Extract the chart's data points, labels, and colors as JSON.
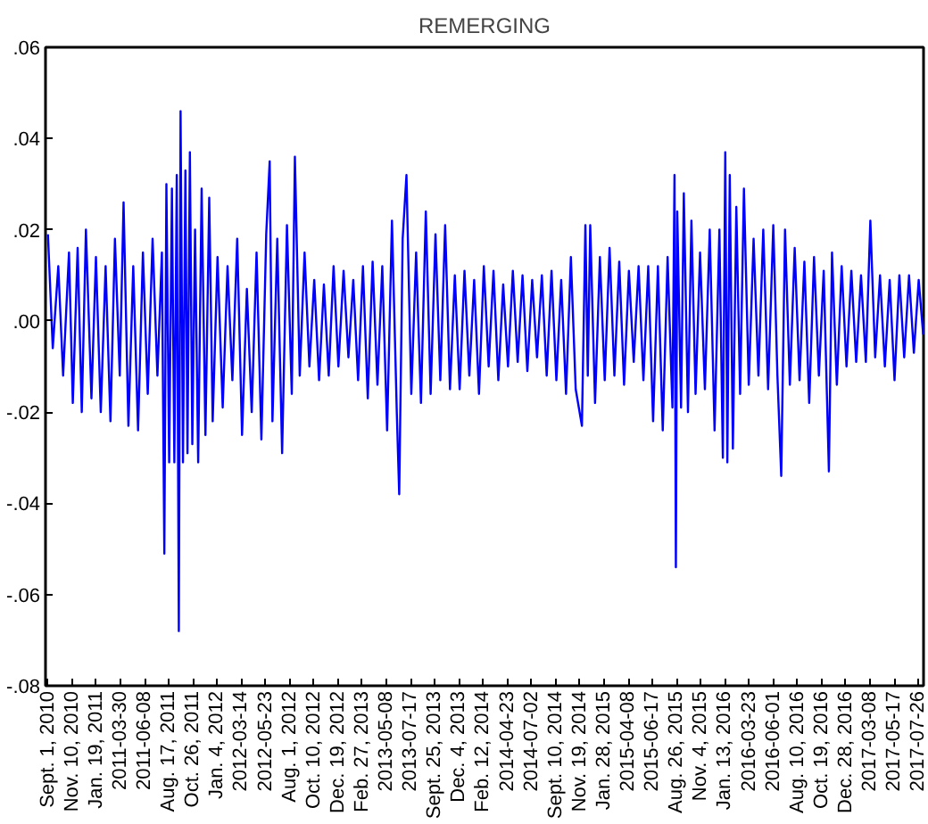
{
  "chart_data": {
    "type": "line",
    "title": "REMERGING",
    "color": "#0000ff",
    "grid": false,
    "xlim": [
      "2010-08-25",
      "2017-08-10"
    ],
    "ylim": [
      -0.08,
      0.06
    ],
    "yticks": [
      {
        "value": -0.08,
        "label": "-.08"
      },
      {
        "value": -0.06,
        "label": "-.06"
      },
      {
        "value": -0.04,
        "label": "-.04"
      },
      {
        "value": -0.02,
        "label": "-.02"
      },
      {
        "value": 0,
        "label": ".00"
      },
      {
        "value": 0.02,
        "label": ".02"
      },
      {
        "value": 0.04,
        "label": ".04"
      },
      {
        "value": 0.06,
        "label": ".06"
      }
    ],
    "xticks": [
      {
        "value": "2010-09-01",
        "label": "Sept. 1, 2010"
      },
      {
        "value": "2010-11-10",
        "label": "Nov. 10, 2010"
      },
      {
        "value": "2011-01-19",
        "label": "Jan. 19, 2011"
      },
      {
        "value": "2011-03-30",
        "label": "2011-03-30"
      },
      {
        "value": "2011-06-08",
        "label": "2011-06-08"
      },
      {
        "value": "2011-08-17",
        "label": "Aug. 17, 2011"
      },
      {
        "value": "2011-10-26",
        "label": "Oct. 26, 2011"
      },
      {
        "value": "2012-01-04",
        "label": "Jan. 4, 2012"
      },
      {
        "value": "2012-03-14",
        "label": "2012-03-14"
      },
      {
        "value": "2012-05-23",
        "label": "2012-05-23"
      },
      {
        "value": "2012-08-01",
        "label": "Aug. 1, 2012"
      },
      {
        "value": "2012-10-10",
        "label": "Oct. 10, 2012"
      },
      {
        "value": "2012-12-19",
        "label": "Dec. 19, 2012"
      },
      {
        "value": "2013-02-27",
        "label": "Feb. 27, 2013"
      },
      {
        "value": "2013-05-08",
        "label": "2013-05-08"
      },
      {
        "value": "2013-07-17",
        "label": "2013-07-17"
      },
      {
        "value": "2013-09-25",
        "label": "Sept. 25, 2013"
      },
      {
        "value": "2013-12-04",
        "label": "Dec. 4, 2013"
      },
      {
        "value": "2014-02-12",
        "label": "Feb. 12, 2014"
      },
      {
        "value": "2014-04-23",
        "label": "2014-04-23"
      },
      {
        "value": "2014-07-02",
        "label": "2014-07-02"
      },
      {
        "value": "2014-09-10",
        "label": "Sept. 10, 2014"
      },
      {
        "value": "2014-11-19",
        "label": "Nov. 19, 2014"
      },
      {
        "value": "2015-01-28",
        "label": "Jan. 28, 2015"
      },
      {
        "value": "2015-04-08",
        "label": "2015-04-08"
      },
      {
        "value": "2015-06-17",
        "label": "2015-06-17"
      },
      {
        "value": "2015-08-26",
        "label": "Aug. 26, 2015"
      },
      {
        "value": "2015-11-04",
        "label": "Nov. 4, 2015"
      },
      {
        "value": "2016-01-13",
        "label": "Jan. 13, 2016"
      },
      {
        "value": "2016-03-23",
        "label": "2016-03-23"
      },
      {
        "value": "2016-06-01",
        "label": "2016-06-01"
      },
      {
        "value": "2016-08-10",
        "label": "Aug. 10, 2016"
      },
      {
        "value": "2016-10-19",
        "label": "Oct. 19, 2016"
      },
      {
        "value": "2016-12-28",
        "label": "Dec. 28, 2016"
      },
      {
        "value": "2017-03-08",
        "label": "2017-03-08"
      },
      {
        "value": "2017-05-17",
        "label": "2017-05-17"
      },
      {
        "value": "2017-07-26",
        "label": "2017-07-26"
      }
    ],
    "x": [
      "2010-09-01",
      "2010-09-15",
      "2010-10-01",
      "2010-10-15",
      "2010-11-01",
      "2010-11-12",
      "2010-11-26",
      "2010-12-08",
      "2010-12-20",
      "2011-01-05",
      "2011-01-18",
      "2011-02-01",
      "2011-02-15",
      "2011-03-01",
      "2011-03-14",
      "2011-03-28",
      "2011-04-08",
      "2011-04-22",
      "2011-05-06",
      "2011-05-20",
      "2011-06-03",
      "2011-06-17",
      "2011-07-01",
      "2011-07-15",
      "2011-07-28",
      "2011-08-04",
      "2011-08-10",
      "2011-08-18",
      "2011-08-26",
      "2011-09-02",
      "2011-09-09",
      "2011-09-15",
      "2011-09-20",
      "2011-09-27",
      "2011-10-04",
      "2011-10-10",
      "2011-10-17",
      "2011-10-24",
      "2011-11-01",
      "2011-11-10",
      "2011-11-20",
      "2011-12-01",
      "2011-12-12",
      "2011-12-22",
      "2012-01-05",
      "2012-01-20",
      "2012-02-03",
      "2012-02-17",
      "2012-03-02",
      "2012-03-16",
      "2012-03-30",
      "2012-04-13",
      "2012-04-27",
      "2012-05-11",
      "2012-05-25",
      "2012-06-04",
      "2012-06-12",
      "2012-06-26",
      "2012-07-10",
      "2012-07-24",
      "2012-08-07",
      "2012-08-16",
      "2012-08-30",
      "2012-09-13",
      "2012-09-27",
      "2012-10-11",
      "2012-10-25",
      "2012-11-08",
      "2012-11-22",
      "2012-12-06",
      "2012-12-20",
      "2013-01-04",
      "2013-01-18",
      "2013-02-01",
      "2013-02-15",
      "2013-03-01",
      "2013-03-15",
      "2013-03-29",
      "2013-04-12",
      "2013-04-26",
      "2013-05-10",
      "2013-05-24",
      "2013-06-07",
      "2013-06-14",
      "2013-06-24",
      "2013-07-05",
      "2013-07-19",
      "2013-08-02",
      "2013-08-16",
      "2013-08-30",
      "2013-09-13",
      "2013-09-27",
      "2013-10-11",
      "2013-10-25",
      "2013-11-08",
      "2013-11-22",
      "2013-12-06",
      "2013-12-20",
      "2014-01-03",
      "2014-01-17",
      "2014-01-31",
      "2014-02-14",
      "2014-02-28",
      "2014-03-14",
      "2014-03-28",
      "2014-04-11",
      "2014-04-25",
      "2014-05-09",
      "2014-05-23",
      "2014-06-06",
      "2014-06-20",
      "2014-07-04",
      "2014-07-18",
      "2014-08-01",
      "2014-08-15",
      "2014-08-29",
      "2014-09-12",
      "2014-09-26",
      "2014-10-10",
      "2014-10-24",
      "2014-11-07",
      "2014-11-25",
      "2014-12-05",
      "2014-12-12",
      "2014-12-19",
      "2015-01-02",
      "2015-01-16",
      "2015-01-30",
      "2015-02-13",
      "2015-02-27",
      "2015-03-13",
      "2015-03-27",
      "2015-04-10",
      "2015-04-24",
      "2015-05-08",
      "2015-05-22",
      "2015-06-05",
      "2015-06-19",
      "2015-07-03",
      "2015-07-17",
      "2015-07-31",
      "2015-08-14",
      "2015-08-20",
      "2015-08-24",
      "2015-08-28",
      "2015-09-08",
      "2015-09-16",
      "2015-09-28",
      "2015-10-08",
      "2015-10-20",
      "2015-11-02",
      "2015-11-16",
      "2015-11-30",
      "2015-12-14",
      "2015-12-28",
      "2016-01-07",
      "2016-01-14",
      "2016-01-20",
      "2016-01-27",
      "2016-02-05",
      "2016-02-15",
      "2016-02-26",
      "2016-03-08",
      "2016-03-22",
      "2016-04-05",
      "2016-04-19",
      "2016-05-03",
      "2016-05-17",
      "2016-06-01",
      "2016-06-13",
      "2016-06-24",
      "2016-07-05",
      "2016-07-19",
      "2016-08-02",
      "2016-08-16",
      "2016-08-30",
      "2016-09-13",
      "2016-09-27",
      "2016-10-11",
      "2016-10-25",
      "2016-11-09",
      "2016-11-18",
      "2016-12-02",
      "2016-12-16",
      "2016-12-30",
      "2017-01-13",
      "2017-01-27",
      "2017-02-10",
      "2017-02-24",
      "2017-03-09",
      "2017-03-23",
      "2017-04-06",
      "2017-04-20",
      "2017-05-04",
      "2017-05-18",
      "2017-06-01",
      "2017-06-15",
      "2017-06-29",
      "2017-07-13",
      "2017-07-27",
      "2017-08-09"
    ],
    "values": [
      0.019,
      -0.006,
      0.012,
      -0.012,
      0.015,
      -0.018,
      0.016,
      -0.02,
      0.02,
      -0.017,
      0.014,
      -0.02,
      0.012,
      -0.022,
      0.018,
      -0.012,
      0.026,
      -0.023,
      0.012,
      -0.024,
      0.015,
      -0.016,
      0.018,
      -0.012,
      0.015,
      -0.051,
      0.03,
      -0.031,
      0.029,
      -0.031,
      0.032,
      -0.068,
      0.046,
      -0.031,
      0.033,
      -0.029,
      0.037,
      -0.027,
      0.02,
      -0.031,
      0.029,
      -0.025,
      0.027,
      -0.022,
      0.014,
      -0.019,
      0.012,
      -0.013,
      0.018,
      -0.025,
      0.007,
      -0.02,
      0.015,
      -0.026,
      0.019,
      0.035,
      -0.022,
      0.018,
      -0.029,
      0.021,
      -0.016,
      0.036,
      -0.012,
      0.015,
      -0.01,
      0.009,
      -0.013,
      0.008,
      -0.012,
      0.012,
      -0.01,
      0.011,
      -0.008,
      0.009,
      -0.013,
      0.012,
      -0.017,
      0.013,
      -0.014,
      0.012,
      -0.024,
      0.022,
      -0.02,
      -0.038,
      0.018,
      0.032,
      -0.016,
      0.015,
      -0.018,
      0.024,
      -0.016,
      0.019,
      -0.013,
      0.021,
      -0.015,
      0.01,
      -0.015,
      0.011,
      -0.012,
      0.009,
      -0.016,
      0.012,
      -0.01,
      0.011,
      -0.013,
      0.008,
      -0.01,
      0.011,
      -0.009,
      0.01,
      -0.011,
      0.009,
      -0.008,
      0.01,
      -0.012,
      0.011,
      -0.013,
      0.009,
      -0.016,
      0.014,
      -0.015,
      -0.023,
      0.021,
      -0.012,
      0.021,
      -0.018,
      0.014,
      -0.013,
      0.016,
      -0.012,
      0.013,
      -0.014,
      0.011,
      -0.009,
      0.012,
      -0.013,
      0.012,
      -0.022,
      0.012,
      -0.024,
      0.014,
      -0.019,
      0.032,
      -0.054,
      0.024,
      -0.019,
      0.028,
      -0.02,
      0.022,
      -0.016,
      0.015,
      -0.015,
      0.02,
      -0.024,
      0.02,
      -0.03,
      0.037,
      -0.031,
      0.032,
      -0.028,
      0.025,
      -0.016,
      0.029,
      -0.014,
      0.018,
      -0.012,
      0.02,
      -0.015,
      0.021,
      -0.012,
      -0.034,
      0.02,
      -0.014,
      0.016,
      -0.013,
      0.013,
      -0.018,
      0.014,
      -0.012,
      0.011,
      -0.033,
      0.015,
      -0.014,
      0.012,
      -0.01,
      0.011,
      -0.009,
      0.01,
      -0.009,
      0.022,
      -0.008,
      0.01,
      -0.01,
      0.009,
      -0.013,
      0.01,
      -0.008,
      0.01,
      -0.007,
      0.009,
      -0.003
    ]
  }
}
